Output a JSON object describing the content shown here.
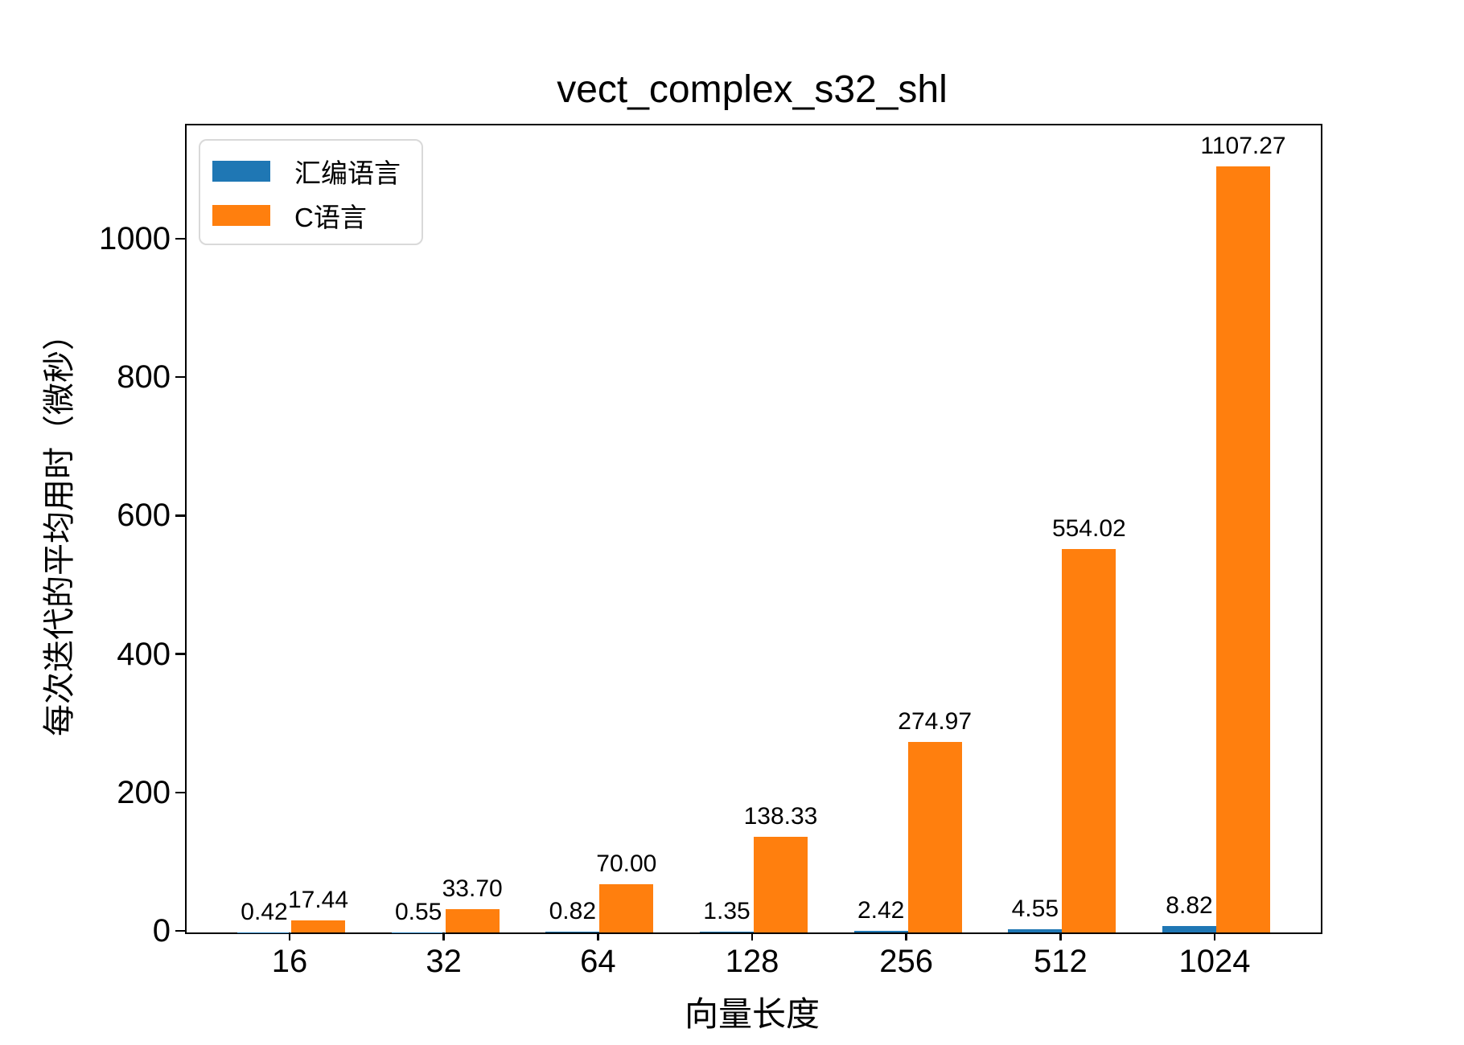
{
  "chart_data": {
    "type": "bar",
    "title": "vect_complex_s32_shl",
    "xlabel": "向量长度",
    "ylabel": "每次迭代的平均用时（微秒）",
    "categories": [
      "16",
      "32",
      "64",
      "128",
      "256",
      "512",
      "1024"
    ],
    "series": [
      {
        "name": "汇编语言",
        "color": "#1f77b4",
        "values": [
          0.42,
          0.55,
          0.82,
          1.35,
          2.42,
          4.55,
          8.82
        ],
        "labels": [
          "0.42",
          "0.55",
          "0.82",
          "1.35",
          "2.42",
          "4.55",
          "8.82"
        ]
      },
      {
        "name": "C语言",
        "color": "#ff7f0e",
        "values": [
          17.44,
          33.7,
          70.0,
          138.33,
          274.97,
          554.02,
          1107.27
        ],
        "labels": [
          "17.44",
          "33.70",
          "70.00",
          "138.33",
          "274.97",
          "554.02",
          "1107.27"
        ]
      }
    ],
    "yticks": [
      0,
      200,
      400,
      600,
      800,
      1000
    ],
    "ylim": [
      0,
      1166
    ],
    "grid": false,
    "legend_position": "upper left"
  }
}
